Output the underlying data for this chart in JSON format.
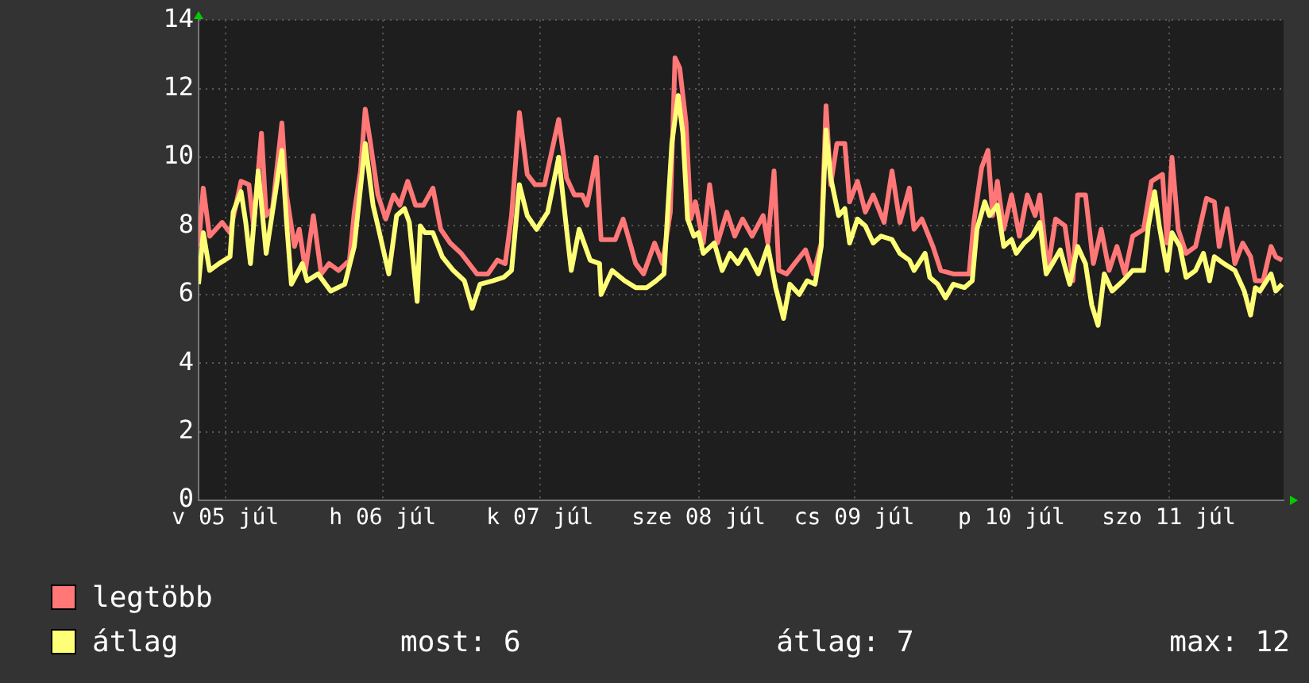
{
  "chart_data": {
    "type": "line",
    "xlim": [
      "--07-05T00:00",
      "--07-11T21:36"
    ],
    "ylim": [
      0,
      14
    ],
    "yticks": [
      0,
      2,
      4,
      6,
      8,
      10,
      12,
      14
    ],
    "xticks": [
      {
        "value": "--07-05T04:05",
        "label": "v 05 júl"
      },
      {
        "value": "--07-06T04:05",
        "label": "h 06 júl"
      },
      {
        "value": "--07-07T04:05",
        "label": "k 07 júl"
      },
      {
        "value": "--07-08T04:19",
        "label": "sze 08 júl"
      },
      {
        "value": "--07-09T04:05",
        "label": "cs 09 júl"
      },
      {
        "value": "--07-10T04:05",
        "label": "p 10 júl"
      },
      {
        "value": "--07-11T04:05",
        "label": "szo 11 júl"
      }
    ],
    "grid": true,
    "legend": "bottom left",
    "annotations": [
      "most: 6",
      "átlag: 7",
      "max: 12"
    ],
    "series": [
      {
        "name": "legtöbb",
        "color": "#ff7777",
        "x": [
          "--07-05T00:00",
          "--07-05T00:43",
          "--07-05T01:41",
          "--07-05T03:36",
          "--07-05T04:48",
          "--07-05T06:29",
          "--07-05T07:41",
          "--07-05T08:24",
          "--07-05T09:36",
          "--07-05T10:19",
          "--07-05T11:17",
          "--07-05T12:43",
          "--07-05T13:26",
          "--07-05T14:38",
          "--07-05T15:22",
          "--07-05T16:19",
          "--07-05T17:31",
          "--07-05T18:43",
          "--07-05T19:55",
          "--07-05T21:22",
          "--07-05T23:02",
          "--07-05T23:46",
          "--07-06T00:43",
          "--07-06T01:26",
          "--07-06T02:10",
          "--07-06T03:22",
          "--07-06T04:34",
          "--07-06T05:46",
          "--07-06T06:43",
          "--07-06T07:55",
          "--07-06T09:07",
          "--07-06T10:19",
          "--07-06T11:46",
          "--07-06T12:58",
          "--07-06T14:24",
          "--07-06T16:05",
          "--07-06T18:29",
          "--07-06T20:10",
          "--07-06T21:36",
          "--07-06T22:48",
          "--07-06T23:46",
          "--07-07T00:58",
          "--07-07T02:10",
          "--07-07T03:22",
          "--07-07T04:48",
          "--07-07T06:58",
          "--07-07T08:10",
          "--07-07T09:22",
          "--07-07T10:34",
          "--07-07T11:17",
          "--07-07T12:43",
          "--07-07T13:26",
          "--07-07T15:36",
          "--07-07T16:48",
          "--07-07T18:00",
          "--07-07T18:43",
          "--07-07T19:55",
          "--07-07T21:36",
          "--07-07T22:48",
          "--07-08T00:00",
          "--07-08T00:43",
          "--07-08T01:26",
          "--07-08T02:24",
          "--07-08T03:07",
          "--07-08T03:50",
          "--07-08T05:02",
          "--07-08T06:00",
          "--07-08T07:12",
          "--07-08T08:38",
          "--07-08T09:50",
          "--07-08T11:02",
          "--07-08T12:29",
          "--07-08T14:10",
          "--07-08T14:53",
          "--07-08T15:50",
          "--07-08T16:34",
          "--07-08T17:46",
          "--07-08T18:58",
          "--07-08T20:38",
          "--07-08T21:50",
          "--07-08T23:02",
          "--07-08T23:46",
          "--07-09T00:29",
          "--07-09T01:26",
          "--07-09T02:38",
          "--07-09T03:22",
          "--07-09T04:34",
          "--07-09T05:46",
          "--07-09T06:58",
          "--07-09T08:38",
          "--07-09T09:50",
          "--07-09T11:02",
          "--07-09T12:29",
          "--07-09T13:12",
          "--07-09T14:24",
          "--07-09T16:05",
          "--07-09T17:17",
          "--07-09T19:12",
          "--07-09T21:36",
          "--07-09T22:19",
          "--07-09T23:31",
          "--07-10T00:29",
          "--07-10T01:12",
          "--07-10T01:55",
          "--07-10T02:53",
          "--07-10T04:05",
          "--07-10T05:17",
          "--07-10T06:29",
          "--07-10T07:41",
          "--07-10T08:24",
          "--07-10T09:36",
          "--07-10T10:48",
          "--07-10T12:14",
          "--07-10T13:26",
          "--07-10T14:10",
          "--07-10T15:22",
          "--07-10T16:34",
          "--07-10T17:46",
          "--07-10T18:58",
          "--07-10T20:10",
          "--07-10T21:22",
          "--07-10T22:34",
          "--07-11T00:14",
          "--07-11T01:26",
          "--07-11T03:07",
          "--07-11T03:50",
          "--07-11T04:34",
          "--07-11T05:31",
          "--07-11T06:43",
          "--07-11T08:10",
          "--07-11T09:50",
          "--07-11T11:02",
          "--07-11T11:46",
          "--07-11T12:58",
          "--07-11T14:10",
          "--07-11T15:22",
          "--07-11T16:34",
          "--07-11T17:17",
          "--07-11T18:29",
          "--07-11T19:41",
          "--07-11T20:24",
          "--07-11T21:22"
        ],
        "values": [
          7.4,
          9.1,
          7.7,
          8.1,
          7.8,
          9.3,
          9.2,
          8,
          10.7,
          8.3,
          8.5,
          11,
          8.9,
          7.4,
          7.9,
          6.7,
          8.3,
          6.6,
          6.9,
          6.7,
          7,
          8.4,
          9.6,
          11.4,
          10.5,
          8.9,
          8.2,
          8.9,
          8.6,
          9.3,
          8.6,
          8.6,
          9.1,
          7.9,
          7.5,
          7.2,
          6.6,
          6.6,
          7,
          6.9,
          8.3,
          11.3,
          9.5,
          9.2,
          9.2,
          11.1,
          9.4,
          8.9,
          8.9,
          8.6,
          10,
          7.6,
          7.6,
          8.2,
          7.4,
          6.9,
          6.6,
          7.5,
          6.9,
          8.4,
          12.9,
          12.6,
          11,
          8.2,
          8.7,
          7.5,
          9.2,
          7.5,
          8.4,
          7.7,
          8.2,
          7.7,
          8.3,
          7.5,
          9.6,
          6.7,
          6.6,
          6.9,
          7.3,
          6.6,
          7.5,
          11.5,
          9.2,
          10.4,
          10.4,
          8.7,
          9.3,
          8.4,
          8.9,
          8.1,
          9.6,
          8.1,
          9.1,
          7.9,
          8.2,
          7.4,
          6.7,
          6.6,
          6.6,
          8.1,
          9.7,
          10.2,
          8.3,
          9.3,
          7.9,
          8.9,
          7.7,
          8.9,
          8.3,
          8.9,
          6.7,
          8.2,
          8,
          6.4,
          8.9,
          8.9,
          6.9,
          7.9,
          6.7,
          7.4,
          6.6,
          7.7,
          7.9,
          9.3,
          9.5,
          7.5,
          10,
          7.9,
          7.2,
          7.4,
          8.8,
          8.7,
          7.4,
          8.5,
          6.9,
          7.5,
          7.1,
          6.4,
          6.4,
          7.4,
          7.1,
          7
        ]
      },
      {
        "name": "átlag",
        "color": "#ffff77",
        "x": [
          "--07-05T00:00",
          "--07-05T00:43",
          "--07-05T01:41",
          "--07-05T03:07",
          "--07-05T04:48",
          "--07-05T05:17",
          "--07-05T06:29",
          "--07-05T07:12",
          "--07-05T07:55",
          "--07-05T09:07",
          "--07-05T10:19",
          "--07-05T12:43",
          "--07-05T13:26",
          "--07-05T14:10",
          "--07-05T15:50",
          "--07-05T16:34",
          "--07-05T18:14",
          "--07-05T20:10",
          "--07-05T22:19",
          "--07-05T23:46",
          "--07-06T01:26",
          "--07-06T02:38",
          "--07-06T03:22",
          "--07-06T05:02",
          "--07-06T06:14",
          "--07-06T07:26",
          "--07-06T08:10",
          "--07-06T09:22",
          "--07-06T09:50",
          "--07-06T10:34",
          "--07-06T11:46",
          "--07-06T13:12",
          "--07-06T14:53",
          "--07-06T16:34",
          "--07-06T17:46",
          "--07-06T18:58",
          "--07-06T20:53",
          "--07-06T22:34",
          "--07-06T23:46",
          "--07-07T00:58",
          "--07-07T02:10",
          "--07-07T03:36",
          "--07-07T05:17",
          "--07-07T06:58",
          "--07-07T08:10",
          "--07-07T08:53",
          "--07-07T10:05",
          "--07-07T11:46",
          "--07-07T13:12",
          "--07-07T13:26",
          "--07-07T15:07",
          "--07-07T17:02",
          "--07-07T18:43",
          "--07-07T20:24",
          "--07-07T21:50",
          "--07-07T23:02",
          "--07-08T00:14",
          "--07-08T01:12",
          "--07-08T01:55",
          "--07-08T02:38",
          "--07-08T03:36",
          "--07-08T04:19",
          "--07-08T05:02",
          "--07-08T06:43",
          "--07-08T07:55",
          "--07-08T09:07",
          "--07-08T10:19",
          "--07-08T11:31",
          "--07-08T13:26",
          "--07-08T14:53",
          "--07-08T16:05",
          "--07-08T17:17",
          "--07-08T18:14",
          "--07-08T19:41",
          "--07-08T20:53",
          "--07-08T22:05",
          "--07-08T23:02",
          "--07-08T23:46",
          "--07-09T00:29",
          "--07-09T01:41",
          "--07-09T02:38",
          "--07-09T03:22",
          "--07-09T04:34",
          "--07-09T05:46",
          "--07-09T06:58",
          "--07-09T08:10",
          "--07-09T09:50",
          "--07-09T11:02",
          "--07-09T12:29",
          "--07-09T13:12",
          "--07-09T14:53",
          "--07-09T15:36",
          "--07-09T16:48",
          "--07-09T18:00",
          "--07-09T19:12",
          "--07-09T20:53",
          "--07-09T22:05",
          "--07-09T22:48",
          "--07-10T00:00",
          "--07-10T00:43",
          "--07-10T01:55",
          "--07-10T02:53",
          "--07-10T04:05",
          "--07-10T04:48",
          "--07-10T06:00",
          "--07-10T07:12",
          "--07-10T08:24",
          "--07-10T09:22",
          "--07-10T10:19",
          "--07-10T11:31",
          "--07-10T12:58",
          "--07-10T14:10",
          "--07-10T15:22",
          "--07-10T16:19",
          "--07-10T17:17",
          "--07-10T18:14",
          "--07-10T19:26",
          "--07-10T21:07",
          "--07-10T22:34",
          "--07-11T00:14",
          "--07-11T00:58",
          "--07-11T01:55",
          "--07-11T02:38",
          "--07-11T03:50",
          "--07-11T04:34",
          "--07-11T05:46",
          "--07-11T06:43",
          "--07-11T08:10",
          "--07-11T09:22",
          "--07-11T10:19",
          "--07-11T11:02",
          "--07-11T12:29",
          "--07-11T14:10",
          "--07-11T15:36",
          "--07-11T16:34",
          "--07-11T17:17",
          "--07-11T18:00",
          "--07-11T19:41",
          "--07-11T20:24",
          "--07-11T21:22"
        ],
        "values": [
          6.3,
          7.8,
          6.7,
          6.9,
          7.1,
          8.4,
          9,
          8.1,
          6.9,
          9.6,
          7.2,
          10.2,
          8.1,
          6.3,
          6.9,
          6.4,
          6.6,
          6.1,
          6.3,
          7.4,
          10.4,
          8.6,
          8,
          6.6,
          8.3,
          8.5,
          8.1,
          5.8,
          8,
          7.8,
          7.8,
          7.1,
          6.7,
          6.4,
          5.6,
          6.3,
          6.4,
          6.5,
          6.7,
          9.2,
          8.3,
          7.9,
          8.4,
          10,
          7.9,
          6.7,
          7.9,
          7,
          6.9,
          6,
          6.7,
          6.4,
          6.2,
          6.2,
          6.4,
          6.6,
          10.4,
          11.8,
          10.7,
          8.2,
          7.7,
          7.8,
          7.2,
          7.5,
          6.7,
          7.2,
          6.9,
          7.3,
          6.6,
          7.4,
          6.2,
          5.3,
          6.3,
          6,
          6.4,
          6.3,
          7.4,
          10.8,
          9.4,
          8.3,
          8.5,
          7.5,
          8.2,
          8,
          7.5,
          7.7,
          7.6,
          7.2,
          7,
          6.7,
          7.2,
          6.5,
          6.3,
          5.9,
          6.3,
          6.2,
          6.4,
          7.9,
          8.7,
          8.3,
          8.6,
          7.4,
          7.6,
          7.2,
          7.5,
          7.7,
          8.1,
          6.6,
          6.9,
          7.3,
          6.3,
          7.4,
          6.9,
          5.7,
          5.1,
          6.6,
          6.1,
          6.4,
          6.7,
          6.7,
          8,
          9,
          8,
          6.7,
          7.8,
          7.4,
          6.5,
          6.7,
          7.2,
          6.4,
          7.1,
          6.9,
          6.7,
          6.1,
          5.4,
          6.2,
          6.1,
          6.6,
          6.1,
          6.3
        ]
      }
    ]
  }
}
